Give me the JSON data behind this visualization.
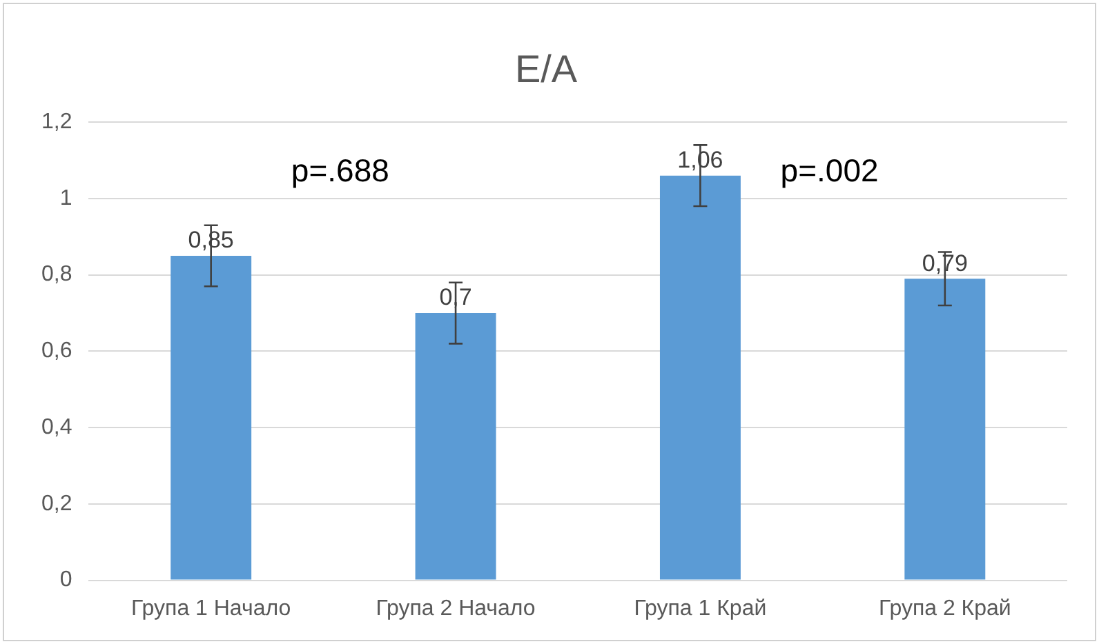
{
  "chart_data": {
    "type": "bar",
    "title": "E/A",
    "categories": [
      "Група 1 Начало",
      "Група 2 Начало",
      "Група 1 Край",
      "Група 2 Край"
    ],
    "values": [
      0.85,
      0.7,
      1.06,
      0.79
    ],
    "errors": [
      0.08,
      0.08,
      0.08,
      0.07
    ],
    "color": "#5b9bd5",
    "ylim": [
      0,
      1.2
    ],
    "yticks": [
      {
        "value": 0,
        "label": "0"
      },
      {
        "value": 0.2,
        "label": "0,2"
      },
      {
        "value": 0.4,
        "label": "0,4"
      },
      {
        "value": 0.6,
        "label": "0,6"
      },
      {
        "value": 0.8,
        "label": "0,8"
      },
      {
        "value": 1,
        "label": "1"
      },
      {
        "value": 1.2,
        "label": "1,2"
      }
    ],
    "value_labels": [
      "0,85",
      "0,7",
      "1,06",
      "0,79"
    ],
    "grid": "y",
    "legend": false,
    "annotations": [
      "p=.688",
      "p=.002"
    ]
  }
}
